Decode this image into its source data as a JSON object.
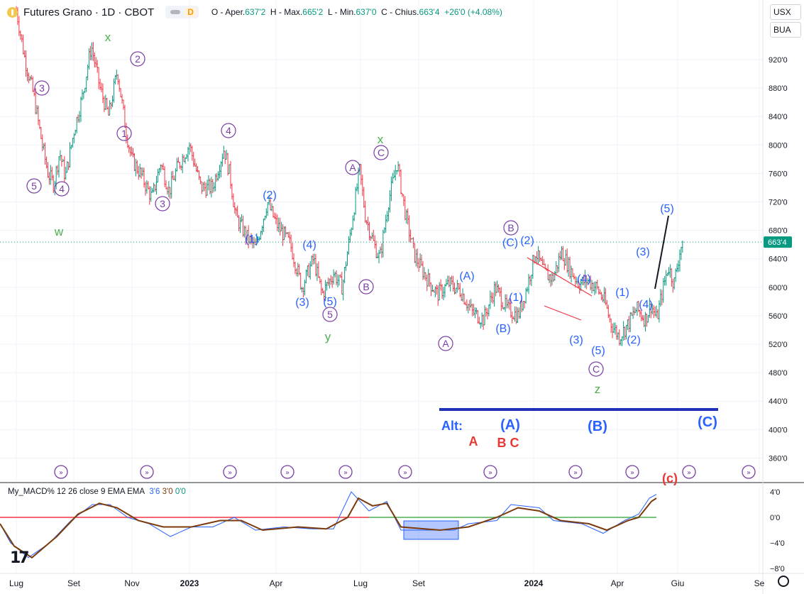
{
  "header": {
    "symbol": "Futures Grano · 1D · CBOT",
    "badge": "D",
    "ohlc_open_label": "O - Aper.",
    "ohlc_open": "637'2",
    "ohlc_high_label": "H - Max.",
    "ohlc_high": "665'2",
    "ohlc_low_label": "L - Min.",
    "ohlc_low": "637'0",
    "ohlc_close_label": "C - Chius.",
    "ohlc_close": "663'4",
    "ohlc_change": "+26'0 (+4.08%)"
  },
  "currency": "USX",
  "unit": "BUA",
  "colors": {
    "up_bar": "#089981",
    "down_bar": "#f23645",
    "wave_purple": "#7a3ea5",
    "wave_blue": "#2962ff",
    "wave_green": "#4caf50",
    "wave_red": "#e53935",
    "macd_line": "#2962ff",
    "signal_line": "#7b3b0c",
    "zero_line_up": "#4caf50",
    "zero_line_down": "#f23645"
  },
  "macd": {
    "label": "My_MACD% 12 26 close 9 EMA EMA",
    "v1": "3'6",
    "v2": "3'0",
    "v3": "0'0",
    "ticks": [
      "4'0",
      "0'0",
      "−4'0",
      "−8'0"
    ]
  },
  "tv_logo": "17",
  "chart_data": {
    "type": "candlestick",
    "title": "Futures Grano · 1D · CBOT",
    "xlabel": "",
    "ylabel": "",
    "ylim": [
      330,
      1010
    ],
    "yticks": [
      "920'0",
      "880'0",
      "840'0",
      "800'0",
      "760'0",
      "720'0",
      "680'0",
      "640'0",
      "600'0",
      "560'0",
      "520'0",
      "480'0",
      "440'0",
      "400'0",
      "360'0"
    ],
    "ytick_values": [
      920,
      880,
      840,
      800,
      760,
      720,
      680,
      640,
      600,
      560,
      520,
      480,
      440,
      400,
      360
    ],
    "last_price": 663.5,
    "last_price_label": "663'4",
    "xticks": [
      "Lug",
      "Set",
      "Nov",
      "2023",
      "Apr",
      "Lug",
      "Set",
      "2024",
      "Apr",
      "Giu",
      "Se"
    ],
    "xtick_months": [
      0,
      2,
      4,
      6,
      9,
      12,
      14,
      18,
      21,
      23,
      26
    ],
    "grid": true,
    "price_path": [
      [
        0,
        990
      ],
      [
        0.3,
        920
      ],
      [
        0.6,
        870
      ],
      [
        0.9,
        800
      ],
      [
        1.1,
        760
      ],
      [
        1.3,
        745
      ],
      [
        1.5,
        790
      ],
      [
        1.7,
        755
      ],
      [
        2.0,
        820
      ],
      [
        2.3,
        870
      ],
      [
        2.6,
        940
      ],
      [
        2.9,
        880
      ],
      [
        3.2,
        840
      ],
      [
        3.5,
        905
      ],
      [
        3.8,
        820
      ],
      [
        4.0,
        780
      ],
      [
        4.3,
        760
      ],
      [
        4.7,
        725
      ],
      [
        5.0,
        775
      ],
      [
        5.3,
        735
      ],
      [
        5.6,
        770
      ],
      [
        6.0,
        800
      ],
      [
        6.4,
        740
      ],
      [
        6.8,
        740
      ],
      [
        7.2,
        795
      ],
      [
        7.4,
        758
      ],
      [
        7.6,
        700
      ],
      [
        8.0,
        670
      ],
      [
        8.3,
        655
      ],
      [
        8.7,
        720
      ],
      [
        9.0,
        690
      ],
      [
        9.5,
        660
      ],
      [
        9.9,
        600
      ],
      [
        10.3,
        640
      ],
      [
        10.6,
        590
      ],
      [
        11.0,
        620
      ],
      [
        11.3,
        600
      ],
      [
        11.7,
        710
      ],
      [
        11.9,
        765
      ],
      [
        12.1,
        700
      ],
      [
        12.4,
        660
      ],
      [
        12.6,
        640
      ],
      [
        12.9,
        720
      ],
      [
        13.2,
        775
      ],
      [
        13.5,
        700
      ],
      [
        13.8,
        645
      ],
      [
        14.2,
        615
      ],
      [
        14.6,
        590
      ],
      [
        15.0,
        605
      ],
      [
        15.4,
        595
      ],
      [
        15.8,
        565
      ],
      [
        16.2,
        555
      ],
      [
        16.6,
        600
      ],
      [
        17.0,
        570
      ],
      [
        17.4,
        560
      ],
      [
        17.7,
        600
      ],
      [
        18.0,
        650
      ],
      [
        18.3,
        620
      ],
      [
        18.6,
        612
      ],
      [
        18.9,
        650
      ],
      [
        19.2,
        625
      ],
      [
        19.5,
        605
      ],
      [
        19.8,
        610
      ],
      [
        20.1,
        600
      ],
      [
        20.4,
        580
      ],
      [
        20.6,
        550
      ],
      [
        20.9,
        530
      ],
      [
        21.2,
        548
      ],
      [
        21.5,
        570
      ],
      [
        21.8,
        555
      ],
      [
        22.0,
        575
      ],
      [
        22.2,
        555
      ],
      [
        22.4,
        595
      ],
      [
        22.6,
        630
      ],
      [
        22.8,
        605
      ],
      [
        23.0,
        650
      ],
      [
        23.1,
        663.5
      ]
    ],
    "wave_labels": [
      {
        "text": "x",
        "color": "green"
      },
      {
        "text": "2",
        "color": "purple",
        "circled": true
      },
      {
        "text": "4",
        "color": "purple",
        "circled": true
      },
      {
        "text": "1",
        "color": "purple",
        "circled": true
      },
      {
        "text": "3",
        "color": "purple",
        "circled": true
      },
      {
        "text": "5",
        "color": "purple",
        "circled": true
      },
      {
        "text": "4",
        "color": "purple",
        "circled": true
      },
      {
        "text": "3",
        "color": "purple",
        "circled": true
      },
      {
        "text": "w",
        "color": "green"
      },
      {
        "text": "(2)",
        "color": "blue"
      },
      {
        "text": "(1)",
        "color": "blue"
      },
      {
        "text": "(4)",
        "color": "blue"
      },
      {
        "text": "(3)",
        "color": "blue"
      },
      {
        "text": "(5)",
        "color": "blue"
      },
      {
        "text": "5",
        "color": "purple",
        "circled": true
      },
      {
        "text": "y",
        "color": "green"
      },
      {
        "text": "A",
        "color": "purple",
        "circled": true
      },
      {
        "text": "x",
        "color": "green"
      },
      {
        "text": "C",
        "color": "purple",
        "circled": true
      },
      {
        "text": "B",
        "color": "purple",
        "circled": true
      },
      {
        "text": "A",
        "color": "purple",
        "circled": true
      },
      {
        "text": "(A)",
        "color": "blue"
      },
      {
        "text": "(B)",
        "color": "blue"
      },
      {
        "text": "B",
        "color": "purple",
        "circled": true
      },
      {
        "text": "(C)",
        "color": "blue"
      },
      {
        "text": "(2)",
        "color": "blue"
      },
      {
        "text": "(1)",
        "color": "blue"
      },
      {
        "text": "(4)",
        "color": "blue"
      },
      {
        "text": "(3)",
        "color": "blue"
      },
      {
        "text": "(5)",
        "color": "blue"
      },
      {
        "text": "C",
        "color": "purple",
        "circled": true
      },
      {
        "text": "z",
        "color": "green"
      },
      {
        "text": "(1)",
        "color": "blue"
      },
      {
        "text": "(2)",
        "color": "blue"
      },
      {
        "text": "(3)",
        "color": "blue"
      },
      {
        "text": "(4)",
        "color": "blue"
      },
      {
        "text": "(5)",
        "color": "blue"
      }
    ],
    "alt_labels": [
      {
        "text": "Alt:",
        "color": "blue"
      },
      {
        "text": "(A)",
        "color": "blue"
      },
      {
        "text": "(B)",
        "color": "blue"
      },
      {
        "text": "(C)",
        "color": "blue"
      },
      {
        "text": "A",
        "color": "red"
      },
      {
        "text": "B C",
        "color": "red"
      },
      {
        "text": "(c)",
        "color": "red"
      }
    ]
  }
}
